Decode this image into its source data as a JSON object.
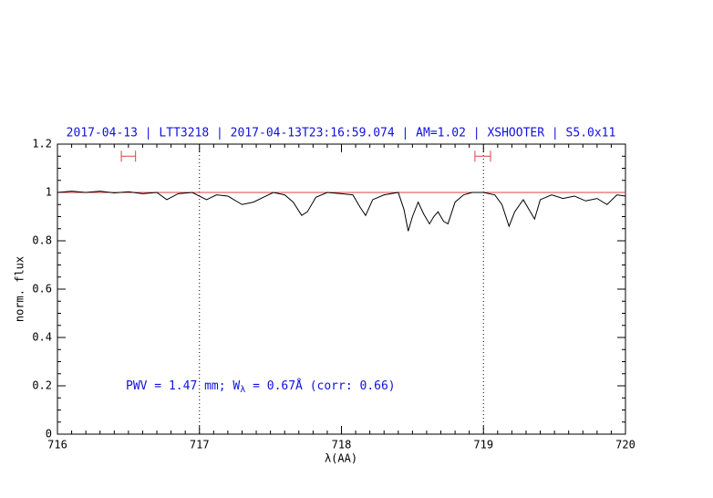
{
  "chart_data": {
    "type": "line",
    "title": "2017-04-13 | LTT3218 | 2017-04-13T23:16:59.074 | AM=1.02 | XSHOOTER | S5.0x11",
    "xlabel": "λ(AA)",
    "ylabel": "norm. flux",
    "annotation": {
      "parts": [
        "PWV = 1.47 mm; W",
        "λ",
        " = 0.67Å (corr: 0.66)"
      ]
    },
    "xlim": [
      716,
      720
    ],
    "ylim": [
      0,
      1.2
    ],
    "xticks": [
      716,
      717,
      718,
      719,
      720
    ],
    "yticks": [
      0,
      0.2,
      0.4,
      0.6,
      0.8,
      1,
      1.2
    ],
    "vlines": [
      717,
      719
    ],
    "hline": 1,
    "windows": [
      [
        716.45,
        716.55
      ],
      [
        718.94,
        719.05
      ]
    ],
    "windows_y": 1.15,
    "series": [
      {
        "color": "#000000",
        "x": [
          716,
          716.1,
          716.2,
          716.3,
          716.4,
          716.5,
          716.6,
          716.7,
          716.77,
          716.85,
          716.95,
          717.05,
          717.12,
          717.2,
          717.3,
          717.38,
          717.45,
          717.52,
          717.6,
          717.66,
          717.72,
          717.76,
          717.82,
          717.9,
          718.0,
          718.08,
          718.13,
          718.17,
          718.22,
          718.3,
          718.4,
          718.44,
          718.47,
          718.5,
          718.54,
          718.58,
          718.62,
          718.65,
          718.68,
          718.72,
          718.75,
          718.8,
          718.86,
          718.92,
          719.0,
          719.08,
          719.13,
          719.18,
          719.22,
          719.28,
          719.32,
          719.36,
          719.4,
          719.48,
          719.56,
          719.64,
          719.72,
          719.8,
          719.87,
          719.94,
          720
        ],
        "values": [
          1.0,
          1.005,
          1.0,
          1.005,
          0.998,
          1.003,
          0.995,
          1.0,
          0.97,
          0.995,
          1.0,
          0.97,
          0.99,
          0.985,
          0.95,
          0.96,
          0.98,
          1.0,
          0.99,
          0.96,
          0.905,
          0.92,
          0.98,
          1.0,
          0.995,
          0.99,
          0.94,
          0.905,
          0.97,
          0.99,
          1.0,
          0.93,
          0.84,
          0.9,
          0.96,
          0.91,
          0.87,
          0.9,
          0.92,
          0.88,
          0.87,
          0.96,
          0.99,
          1.0,
          1.0,
          0.99,
          0.95,
          0.86,
          0.92,
          0.97,
          0.93,
          0.89,
          0.97,
          0.99,
          0.975,
          0.985,
          0.965,
          0.975,
          0.95,
          0.99,
          0.985
        ]
      }
    ],
    "hline_color": "#e04040",
    "window_color": "#e04040"
  }
}
